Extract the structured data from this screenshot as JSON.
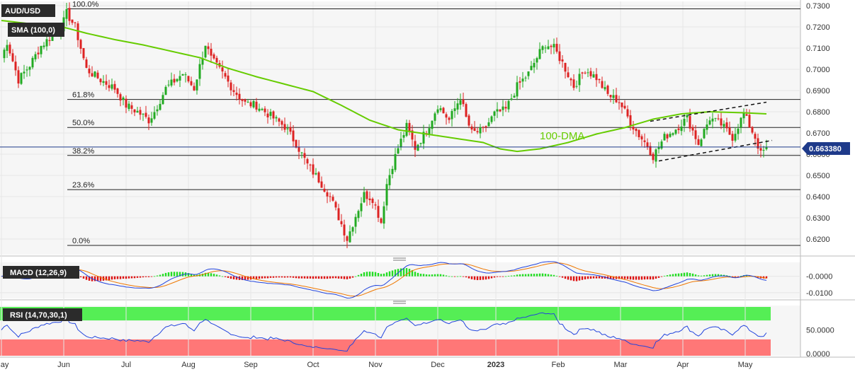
{
  "chart_data": {
    "type": "candlestick",
    "symbol": "AUD/USD",
    "indicator_label": "SMA (100,0)",
    "annotation": "100-DMA",
    "current_price": 0.66338,
    "current_price_label": "0.663380",
    "price_range": [
      0.616,
      0.7305
    ],
    "price_ticks": [
      "0.7300",
      "0.7200",
      "0.7100",
      "0.7000",
      "0.6900",
      "0.6800",
      "0.6700",
      "0.6600",
      "0.6500",
      "0.6400",
      "0.6300",
      "0.6200"
    ],
    "price_tick_values": [
      0.73,
      0.72,
      0.71,
      0.7,
      0.69,
      0.68,
      0.67,
      0.66,
      0.65,
      0.64,
      0.63,
      0.62
    ],
    "months": [
      "May",
      "Jun",
      "Jul",
      "Aug",
      "Sep",
      "Oct",
      "Nov",
      "Dec",
      "2023",
      "Feb",
      "Mar",
      "Apr",
      "May"
    ],
    "fib_levels": [
      {
        "label": "100.0%",
        "price": 0.7285
      },
      {
        "label": "61.8%",
        "price": 0.6858
      },
      {
        "label": "50.0%",
        "price": 0.6726
      },
      {
        "label": "38.2%",
        "price": 0.6594
      },
      {
        "label": "23.6%",
        "price": 0.6433
      },
      {
        "label": "0.0%",
        "price": 0.617
      }
    ],
    "price_path": [
      [
        0,
        0.705
      ],
      [
        2,
        0.713
      ],
      [
        6,
        0.695
      ],
      [
        10,
        0.702
      ],
      [
        14,
        0.711
      ],
      [
        18,
        0.716
      ],
      [
        21,
        0.719
      ],
      [
        23,
        0.7265
      ],
      [
        26,
        0.72
      ],
      [
        30,
        0.7
      ],
      [
        35,
        0.695
      ],
      [
        40,
        0.691
      ],
      [
        44,
        0.683
      ],
      [
        48,
        0.68
      ],
      [
        52,
        0.676
      ],
      [
        54,
        0.68
      ],
      [
        58,
        0.691
      ],
      [
        64,
        0.698
      ],
      [
        68,
        0.691
      ],
      [
        72,
        0.712
      ],
      [
        74,
        0.705
      ],
      [
        78,
        0.698
      ],
      [
        82,
        0.69
      ],
      [
        86,
        0.684
      ],
      [
        90,
        0.683
      ],
      [
        95,
        0.678
      ],
      [
        100,
        0.673
      ],
      [
        104,
        0.665
      ],
      [
        108,
        0.655
      ],
      [
        112,
        0.648
      ],
      [
        116,
        0.64
      ],
      [
        120,
        0.627
      ],
      [
        122,
        0.62
      ],
      [
        125,
        0.631
      ],
      [
        128,
        0.641
      ],
      [
        131,
        0.639
      ],
      [
        134,
        0.628
      ],
      [
        136,
        0.646
      ],
      [
        138,
        0.655
      ],
      [
        140,
        0.663
      ],
      [
        143,
        0.673
      ],
      [
        146,
        0.663
      ],
      [
        150,
        0.671
      ],
      [
        154,
        0.683
      ],
      [
        158,
        0.676
      ],
      [
        162,
        0.687
      ],
      [
        164,
        0.677
      ],
      [
        166,
        0.67
      ],
      [
        170,
        0.671
      ],
      [
        174,
        0.679
      ],
      [
        178,
        0.681
      ],
      [
        182,
        0.692
      ],
      [
        186,
        0.698
      ],
      [
        190,
        0.708
      ],
      [
        192,
        0.712
      ],
      [
        195,
        0.71
      ],
      [
        198,
        0.703
      ],
      [
        202,
        0.692
      ],
      [
        206,
        0.7
      ],
      [
        210,
        0.696
      ],
      [
        214,
        0.688
      ],
      [
        218,
        0.685
      ],
      [
        222,
        0.675
      ],
      [
        225,
        0.669
      ],
      [
        228,
        0.664
      ],
      [
        230,
        0.659
      ],
      [
        234,
        0.668
      ],
      [
        238,
        0.672
      ],
      [
        242,
        0.677
      ],
      [
        246,
        0.665
      ],
      [
        250,
        0.677
      ],
      [
        254,
        0.674
      ],
      [
        258,
        0.668
      ],
      [
        262,
        0.679
      ],
      [
        266,
        0.668
      ],
      [
        268,
        0.66
      ],
      [
        270,
        0.663
      ]
    ],
    "sma_path": [
      [
        0,
        0.723
      ],
      [
        10,
        0.7215
      ],
      [
        20,
        0.7205
      ],
      [
        30,
        0.717
      ],
      [
        40,
        0.714
      ],
      [
        50,
        0.7115
      ],
      [
        60,
        0.7085
      ],
      [
        70,
        0.7055
      ],
      [
        80,
        0.7005
      ],
      [
        90,
        0.6965
      ],
      [
        100,
        0.693
      ],
      [
        110,
        0.6895
      ],
      [
        120,
        0.683
      ],
      [
        130,
        0.676
      ],
      [
        140,
        0.6715
      ],
      [
        150,
        0.6695
      ],
      [
        160,
        0.6675
      ],
      [
        170,
        0.6655
      ],
      [
        176,
        0.6625
      ],
      [
        182,
        0.6613
      ],
      [
        190,
        0.6625
      ],
      [
        200,
        0.6655
      ],
      [
        210,
        0.6695
      ],
      [
        220,
        0.6725
      ],
      [
        230,
        0.6765
      ],
      [
        240,
        0.679
      ],
      [
        250,
        0.68
      ],
      [
        262,
        0.6795
      ],
      [
        270,
        0.679
      ]
    ],
    "channel_upper": [
      [
        229,
        0.6755
      ],
      [
        270,
        0.6845
      ]
    ],
    "channel_lower": [
      [
        232,
        0.6568
      ],
      [
        272,
        0.6665
      ]
    ],
    "macd": {
      "label": "MACD (12,26,9)",
      "ticks": [
        "-0.0000",
        "-0.0100"
      ],
      "tick_values": [
        0.0,
        -0.01
      ],
      "range": [
        -0.0135,
        0.0085
      ]
    },
    "rsi": {
      "label": "RSI (14,70,30,1)",
      "ticks": [
        "50.0000",
        "0.0000"
      ],
      "tick_values": [
        50,
        0
      ],
      "range": [
        0,
        100
      ],
      "current": 44
    },
    "colors": {
      "up": "#22aa22",
      "down": "#dd2222",
      "sma": "#66cc00",
      "macd_line": "#2244dd",
      "signal_line": "#ee7700",
      "price_tag": "#1e3a8a",
      "overbought_zone": "#55ee55",
      "oversold_zone": "#ff7777"
    }
  }
}
